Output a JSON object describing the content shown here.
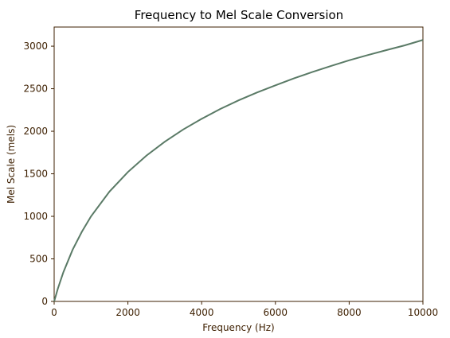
{
  "chart_data": {
    "type": "line",
    "title": "Frequency to Mel Scale Conversion",
    "xlabel": "Frequency (Hz)",
    "ylabel": "Mel Scale (mels)",
    "xlim": [
      0,
      10000
    ],
    "ylim": [
      0,
      3225
    ],
    "xticks": [
      0,
      2000,
      4000,
      6000,
      8000,
      10000
    ],
    "yticks": [
      0,
      500,
      1000,
      1500,
      2000,
      2500,
      3000
    ],
    "grid": false,
    "colors": {
      "line": "#5a7a66",
      "axes": "#3d1f00"
    },
    "series": [
      {
        "x": [
          0,
          100,
          250,
          500,
          750,
          1000,
          1500,
          2000,
          2500,
          3000,
          3500,
          4000,
          4500,
          5000,
          5500,
          6000,
          6500,
          7000,
          7500,
          8000,
          8500,
          9000,
          9500,
          10000
        ],
        "y": [
          0,
          150,
          344,
          607,
          818,
          1000,
          1291,
          1521,
          1713,
          1877,
          2021,
          2146,
          2261,
          2363,
          2456,
          2540,
          2621,
          2696,
          2766,
          2834,
          2895,
          2953,
          3009,
          3073
        ]
      }
    ]
  }
}
